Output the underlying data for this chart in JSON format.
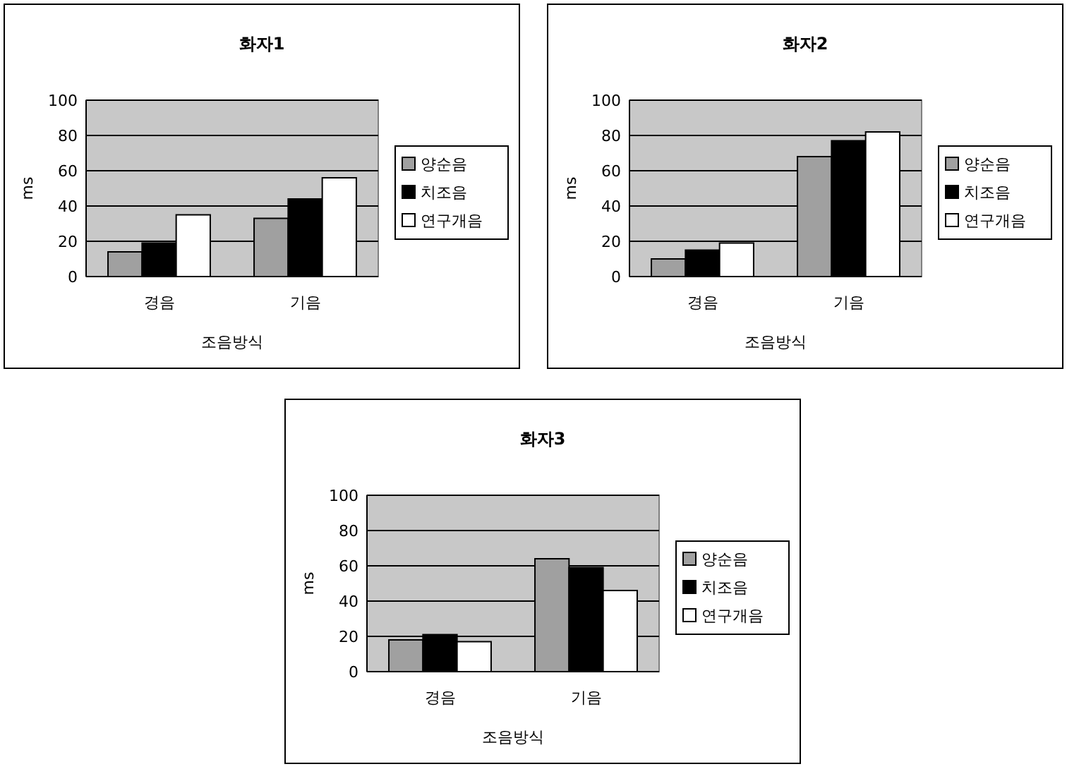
{
  "chart_data": [
    {
      "type": "bar",
      "title": "화자1",
      "xlabel": "조음방식",
      "ylabel": "ms",
      "categories": [
        "경음",
        "기음"
      ],
      "ylim": [
        0,
        100
      ],
      "yticks": [
        0,
        20,
        40,
        60,
        80,
        100
      ],
      "grid": "y",
      "legend": "right",
      "series": [
        {
          "name": "양순음",
          "color": "#a0a0a0",
          "values": [
            14,
            33
          ]
        },
        {
          "name": "치조음",
          "color": "#000000",
          "values": [
            19,
            44
          ]
        },
        {
          "name": "연구개음",
          "color": "#ffffff",
          "values": [
            35,
            56
          ]
        }
      ]
    },
    {
      "type": "bar",
      "title": "화자2",
      "xlabel": "조음방식",
      "ylabel": "ms",
      "categories": [
        "경음",
        "기음"
      ],
      "ylim": [
        0,
        100
      ],
      "yticks": [
        0,
        20,
        40,
        60,
        80,
        100
      ],
      "grid": "y",
      "legend": "right",
      "series": [
        {
          "name": "양순음",
          "color": "#a0a0a0",
          "values": [
            10,
            68
          ]
        },
        {
          "name": "치조음",
          "color": "#000000",
          "values": [
            15,
            77
          ]
        },
        {
          "name": "연구개음",
          "color": "#ffffff",
          "values": [
            19,
            82
          ]
        }
      ]
    },
    {
      "type": "bar",
      "title": "화자3",
      "xlabel": "조음방식",
      "ylabel": "ms",
      "categories": [
        "경음",
        "기음"
      ],
      "ylim": [
        0,
        100
      ],
      "yticks": [
        0,
        20,
        40,
        60,
        80,
        100
      ],
      "grid": "y",
      "legend": "right",
      "series": [
        {
          "name": "양순음",
          "color": "#a0a0a0",
          "values": [
            18,
            64
          ]
        },
        {
          "name": "치조음",
          "color": "#000000",
          "values": [
            21,
            59
          ]
        },
        {
          "name": "연구개음",
          "color": "#ffffff",
          "values": [
            17,
            46
          ]
        }
      ]
    }
  ]
}
